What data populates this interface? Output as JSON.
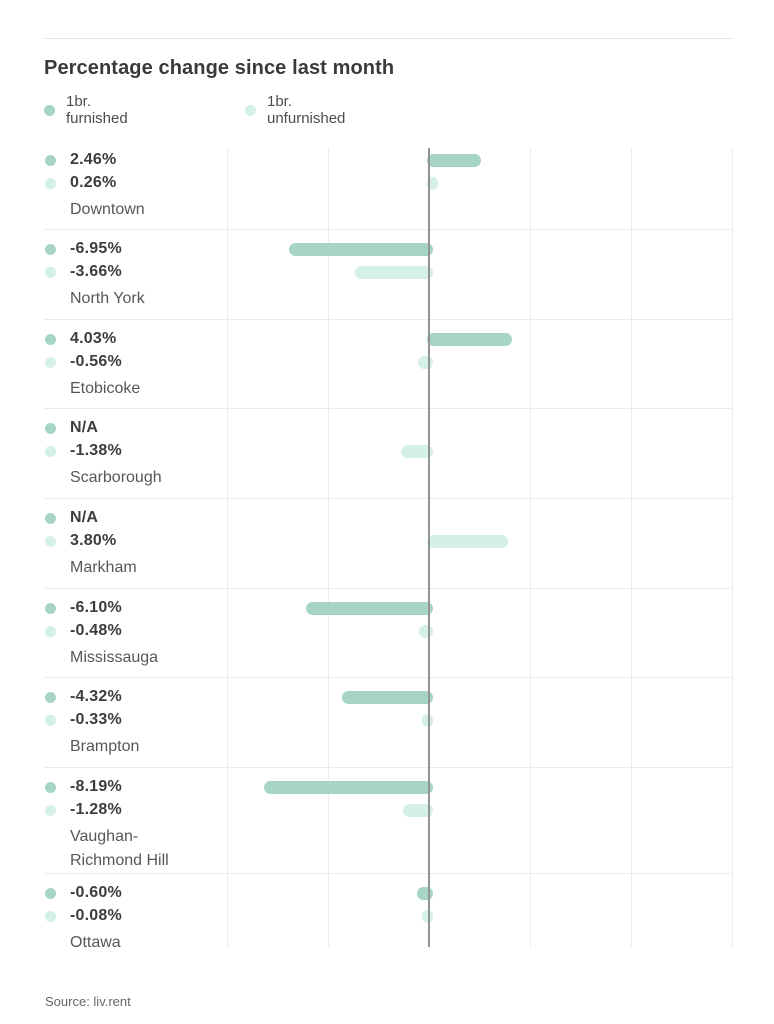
{
  "title": "Percentage change since last month",
  "source": "Source: liv.rent",
  "legend": [
    {
      "label": "1br. furnished",
      "color": "#a6d4c6"
    },
    {
      "label": "1br. unfurnished",
      "color": "#d4f0e7"
    }
  ],
  "colors": {
    "furnished": "#a6d4c6",
    "unfurnished": "#d4f0e7",
    "zero_line": "#939393",
    "gridline": "#ececec",
    "separator": "#ebebeb",
    "divider": "#e3e3e3",
    "title_text": "#3a3a3a",
    "value_text": "#3d3d3d",
    "label_text": "#575757"
  },
  "chart_data": {
    "type": "bar",
    "orientation": "horizontal",
    "title": "Percentage change since last month",
    "unit": "percent",
    "series_names": [
      "1br. furnished",
      "1br. unfurnished"
    ],
    "xlim": [
      -10,
      15
    ],
    "gridline_interval": 5,
    "zero_line": true,
    "axis_tick_labels_shown": false,
    "legend_position": "top-left",
    "categories": [
      "Downtown",
      "North York",
      "Etobicoke",
      "Scarborough",
      "Markham",
      "Mississauga",
      "Brampton",
      "Vaughan-Richmond Hill",
      "Ottawa"
    ],
    "rows": [
      {
        "category": "Downtown",
        "label_lines": [
          "Downtown"
        ],
        "furnished": 2.46,
        "unfurnished": 0.26,
        "furnished_label": "2.46%",
        "unfurnished_label": "0.26%"
      },
      {
        "category": "North York",
        "label_lines": [
          "North York"
        ],
        "furnished": -6.95,
        "unfurnished": -3.66,
        "furnished_label": "-6.95%",
        "unfurnished_label": "-3.66%"
      },
      {
        "category": "Etobicoke",
        "label_lines": [
          "Etobicoke"
        ],
        "furnished": 4.03,
        "unfurnished": -0.56,
        "furnished_label": "4.03%",
        "unfurnished_label": "-0.56%"
      },
      {
        "category": "Scarborough",
        "label_lines": [
          "Scarborough"
        ],
        "furnished": null,
        "unfurnished": -1.38,
        "furnished_label": "N/A",
        "unfurnished_label": "-1.38%"
      },
      {
        "category": "Markham",
        "label_lines": [
          "Markham"
        ],
        "furnished": null,
        "unfurnished": 3.8,
        "furnished_label": "N/A",
        "unfurnished_label": "3.80%"
      },
      {
        "category": "Mississauga",
        "label_lines": [
          "Mississauga"
        ],
        "furnished": -6.1,
        "unfurnished": -0.48,
        "furnished_label": "-6.10%",
        "unfurnished_label": "-0.48%"
      },
      {
        "category": "Brampton",
        "label_lines": [
          "Brampton"
        ],
        "furnished": -4.32,
        "unfurnished": -0.33,
        "furnished_label": "-4.32%",
        "unfurnished_label": "-0.33%"
      },
      {
        "category": "Vaughan-Richmond Hill",
        "label_lines": [
          "Vaughan-",
          "Richmond Hill"
        ],
        "furnished": -8.19,
        "unfurnished": -1.28,
        "furnished_label": "-8.19%",
        "unfurnished_label": "-1.28%"
      },
      {
        "category": "Ottawa",
        "label_lines": [
          "Ottawa"
        ],
        "furnished": -0.6,
        "unfurnished": -0.08,
        "furnished_label": "-0.60%",
        "unfurnished_label": "-0.08%"
      }
    ]
  }
}
